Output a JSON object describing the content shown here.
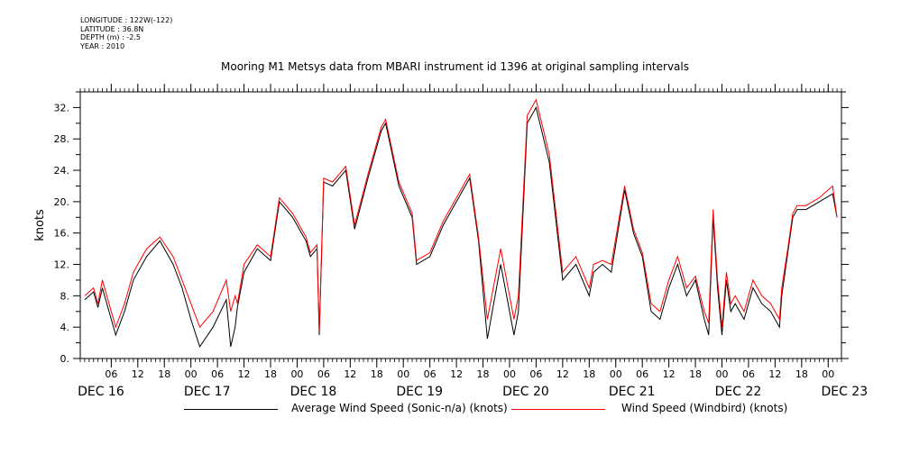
{
  "header": {
    "longitude": "LONGITUDE : 122W(-122)",
    "latitude": "LATITUDE : 36.8N",
    "depth": "DEPTH (m) : -2.5",
    "year": "YEAR : 2010"
  },
  "colors": {
    "average": "#000000",
    "windbird": "#ff0000",
    "axis": "#000000"
  },
  "chart_data": {
    "type": "line",
    "title": "Mooring M1 Metsys data from MBARI instrument id 1396 at original sampling intervals",
    "ylabel": "knots",
    "xlabel": "",
    "ylim": [
      0,
      34
    ],
    "xlim": [
      0,
      172
    ],
    "x_units": "hours from 2010-12-15 23:00",
    "yticks": [
      "0.",
      "4.",
      "8.",
      "12.",
      "16.",
      "20.",
      "24.",
      "28.",
      "32."
    ],
    "xticks_hours": [
      "06",
      "12",
      "18",
      "00",
      "06",
      "12",
      "18",
      "00",
      "06",
      "12",
      "18",
      "00",
      "06",
      "12",
      "18",
      "00",
      "06",
      "12",
      "18",
      "00",
      "06",
      "12",
      "18",
      "00",
      "06",
      "12",
      "18",
      "00"
    ],
    "day_labels": [
      "DEC 16",
      "DEC 17",
      "DEC 18",
      "DEC 19",
      "DEC 20",
      "DEC 21",
      "DEC 22",
      "DEC 23"
    ],
    "legend": [
      "Average Wind Speed (Sonic-n/a) (knots)",
      "Wind Speed (Windbird) (knots)"
    ],
    "series": [
      {
        "name": "Average Wind Speed (Sonic-n/a) (knots)",
        "color": "#000000",
        "x": [
          1,
          3,
          4,
          5,
          8,
          10,
          12,
          15,
          18,
          21,
          23,
          25,
          27,
          30,
          33,
          34,
          35,
          35.5,
          37,
          40,
          43,
          45,
          48,
          50,
          51,
          52,
          53.5,
          54,
          55,
          57,
          60,
          62,
          65,
          68,
          69,
          72,
          75,
          76,
          79,
          82,
          85,
          88,
          90,
          92,
          95,
          98,
          99,
          101,
          103,
          106,
          109,
          112,
          115,
          116,
          118,
          120,
          123,
          125,
          127,
          129,
          131,
          133,
          135,
          137,
          139,
          141,
          142,
          143,
          144,
          145,
          146,
          147,
          148,
          150,
          152,
          154,
          156,
          158,
          158.5,
          160,
          161,
          162,
          164,
          167,
          170,
          171
        ],
        "y": [
          7.5,
          8.5,
          6.5,
          9,
          3,
          6,
          10,
          13,
          15,
          12,
          9,
          5,
          1.5,
          4,
          7.5,
          1.5,
          4,
          6.5,
          11,
          14,
          12.5,
          20,
          18,
          16,
          15,
          13,
          14,
          3,
          22.5,
          22,
          24,
          16.5,
          23,
          29,
          30,
          22,
          18,
          12,
          13,
          17,
          20,
          23,
          15,
          2.5,
          12,
          3,
          6,
          30,
          32,
          25,
          10,
          12,
          8,
          11,
          12,
          11,
          21.5,
          16,
          13,
          6,
          5,
          9,
          12,
          8,
          10,
          5,
          3,
          18,
          9,
          3,
          10,
          6,
          7,
          5,
          9,
          7,
          6,
          4,
          8,
          14,
          18,
          19,
          19,
          20,
          21,
          18
        ]
      },
      {
        "name": "Wind Speed (Windbird) (knots)",
        "color": "#ff0000",
        "x": [
          1,
          3,
          4,
          5,
          8,
          10,
          12,
          15,
          18,
          21,
          23,
          25,
          27,
          30,
          33,
          34,
          35,
          35.5,
          37,
          40,
          43,
          45,
          48,
          50,
          51,
          52,
          53.5,
          54,
          55,
          57,
          60,
          62,
          65,
          68,
          69,
          72,
          75,
          76,
          79,
          82,
          85,
          88,
          90,
          92,
          95,
          98,
          99,
          101,
          103,
          106,
          109,
          112,
          115,
          116,
          118,
          120,
          123,
          125,
          127,
          129,
          131,
          133,
          135,
          137,
          139,
          141,
          142,
          143,
          144,
          145,
          146,
          147,
          148,
          150,
          152,
          154,
          156,
          158,
          158.5,
          160,
          161,
          162,
          164,
          167,
          170,
          171
        ],
        "y": [
          8,
          9,
          7,
          10,
          4,
          7,
          11,
          14,
          15.5,
          13,
          10,
          7,
          4,
          6,
          10,
          6,
          8,
          7,
          12,
          14.5,
          13,
          20.5,
          18.5,
          16.5,
          15.5,
          13.5,
          14.5,
          3.5,
          23,
          22.5,
          24.5,
          17,
          23.5,
          29.5,
          30.5,
          22.5,
          18.5,
          12.5,
          13.5,
          17.5,
          20.5,
          23.5,
          15.5,
          5,
          14,
          5,
          8,
          31,
          33,
          26,
          11,
          13,
          9,
          12,
          12.5,
          12,
          22,
          16.5,
          13.5,
          7,
          6,
          10,
          13,
          9,
          10.5,
          6,
          4.5,
          19,
          10,
          4,
          11,
          7,
          8,
          6,
          10,
          8,
          7,
          5,
          9,
          14.5,
          18.5,
          19.5,
          19.5,
          20.5,
          22,
          18
        ]
      }
    ]
  }
}
